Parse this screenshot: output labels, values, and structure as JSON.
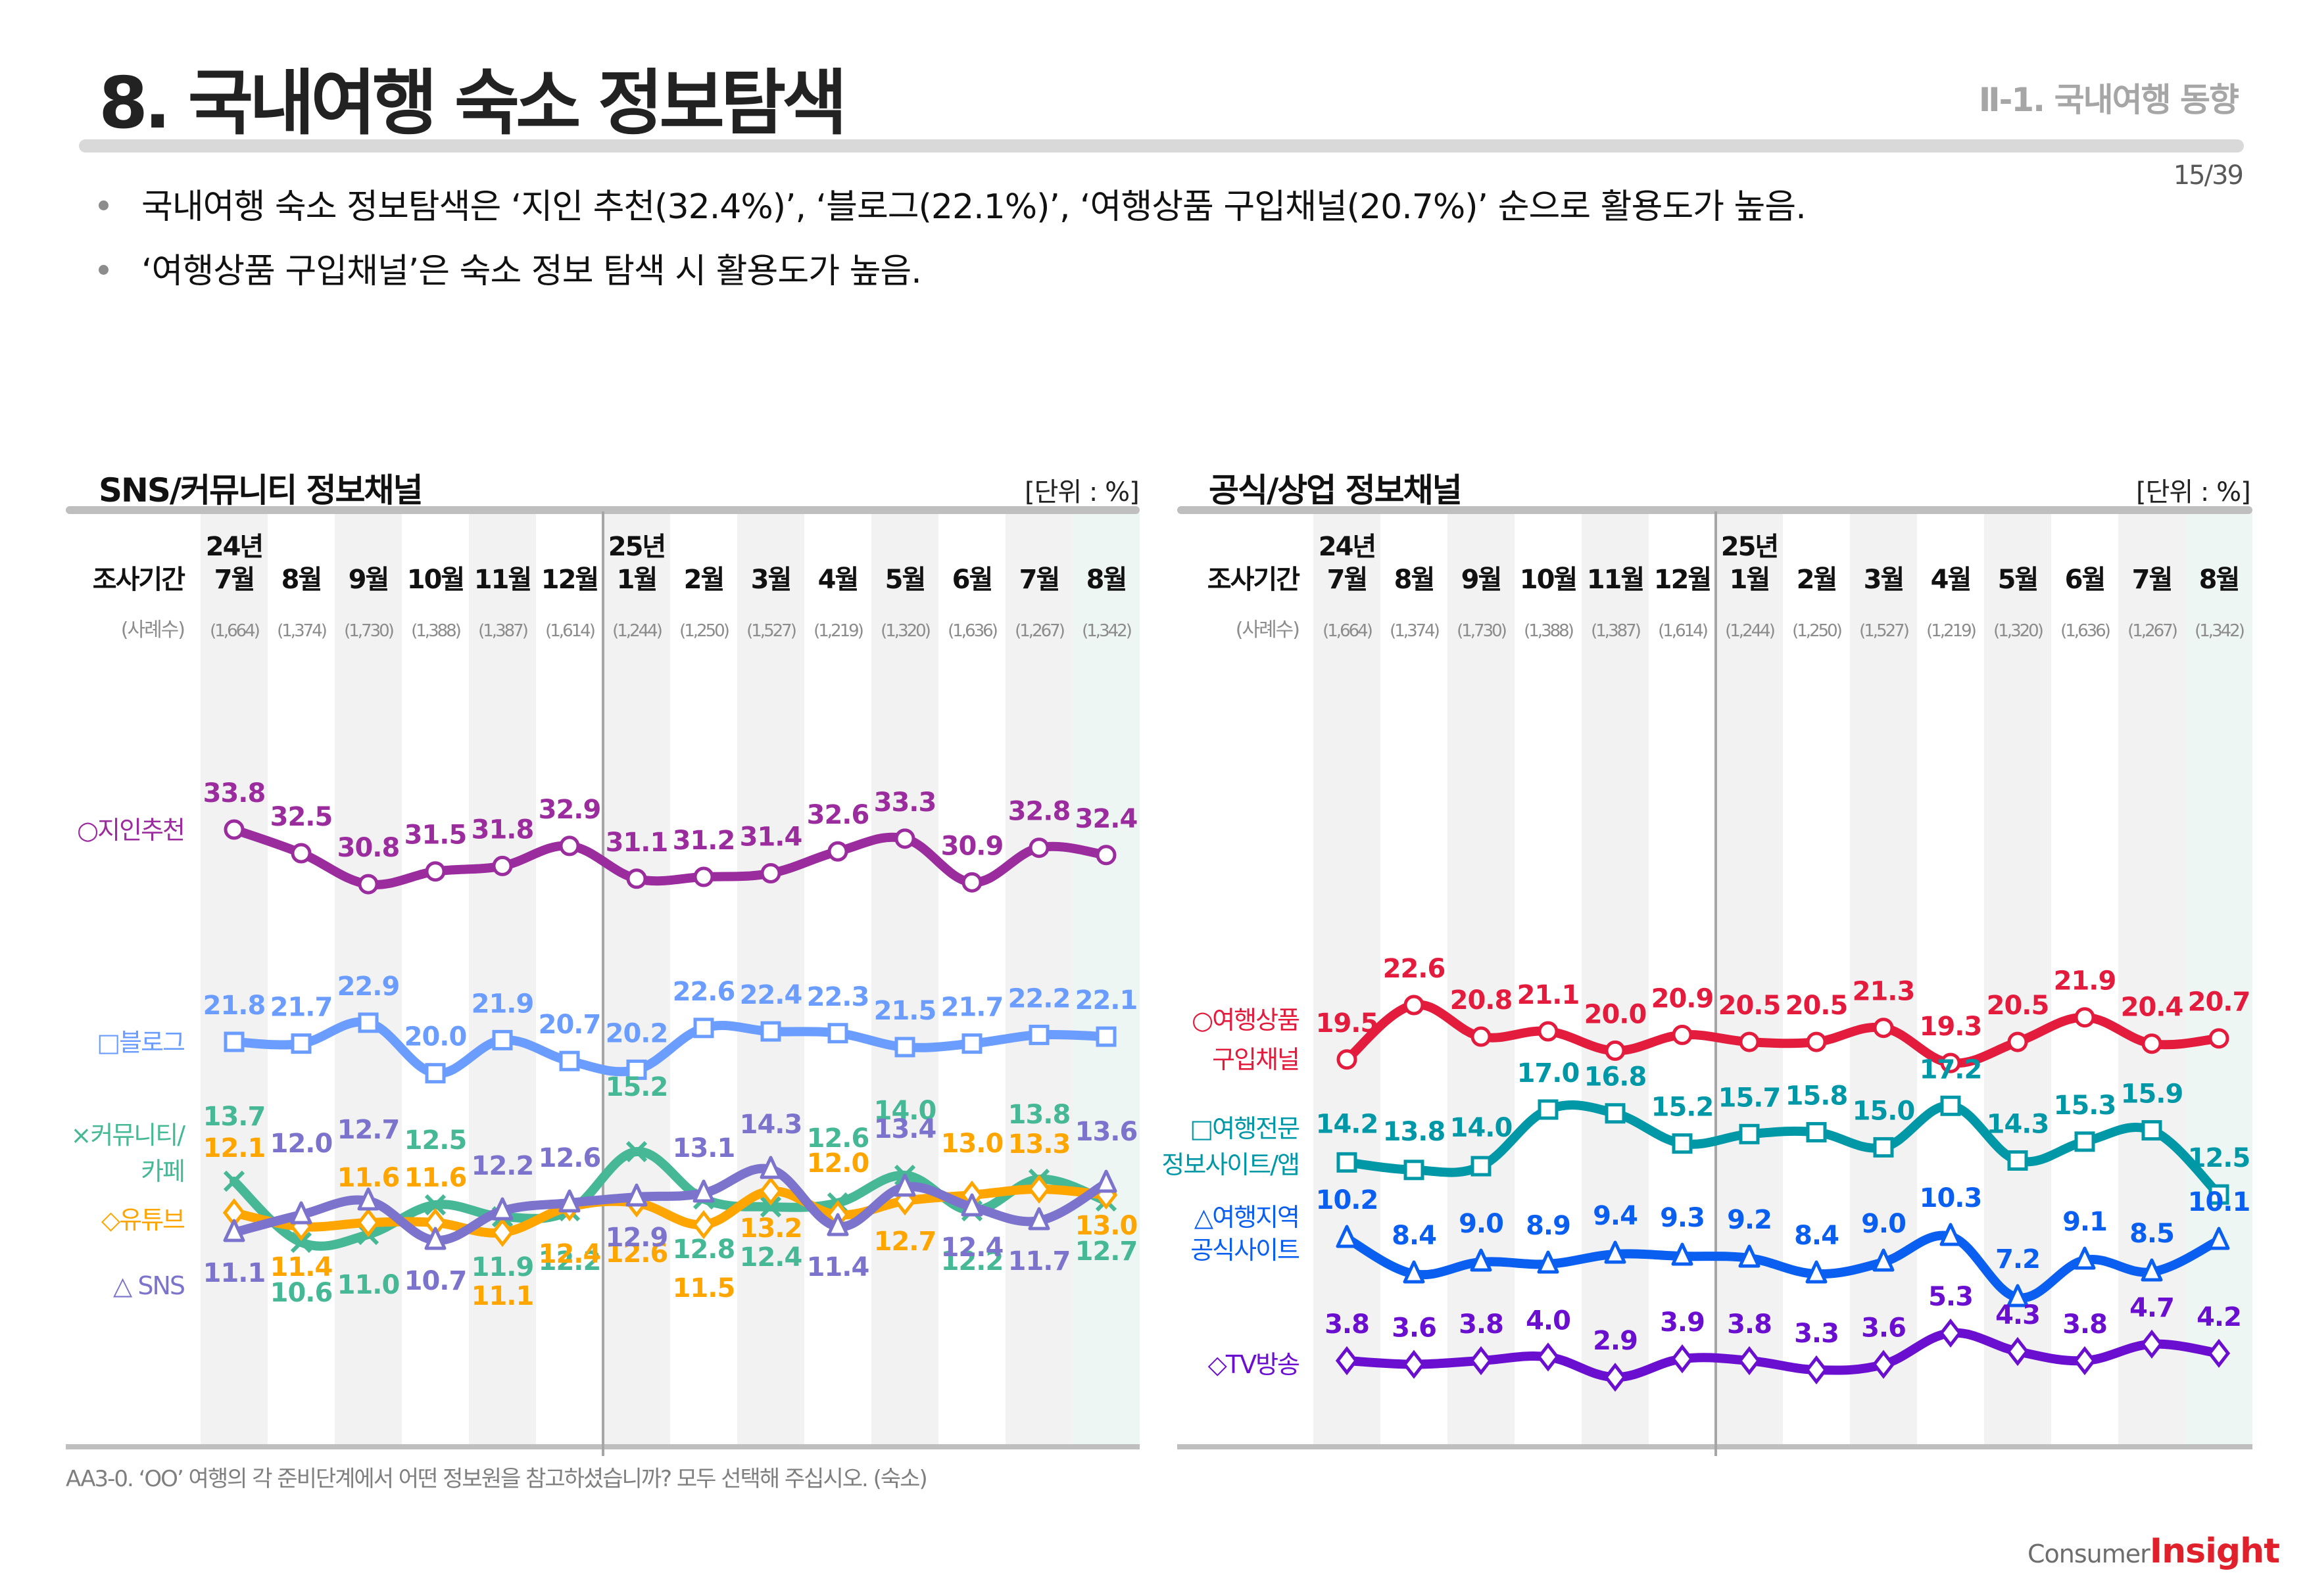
{
  "header": {
    "title": "8. 국내여행 숙소 정보탐색",
    "section": "Ⅱ-1. 국내여행 동향",
    "page": "15/39"
  },
  "bullets": [
    "국내여행 숙소 정보탐색은 ‘지인 추천(32.4%)’, ‘블로그(22.1%)’, ‘여행상품 구입채널(20.7%)’ 순으로 활용도가 높음.",
    "‘여행상품 구입채널’은 숙소 정보 탐색 시 활용도가 높음."
  ],
  "footnote": "AA3-0. ‘OO’ 여행의 각 준비단계에서 어떤 정보원을 참고하셨습니까? 모두 선택해 주십시오. (숙소)",
  "logo": {
    "part1": "Consumer",
    "part2": "Insight"
  },
  "chart_data": [
    {
      "type": "line",
      "title": "SNS/커뮤니티 정보채널",
      "unit": "[단위 : %]",
      "period_label": "조사기간",
      "sample_label": "(사례수)",
      "years": [
        {
          "label": "24년",
          "index": 0
        },
        {
          "label": "25년",
          "index": 6
        }
      ],
      "categories": [
        "7월",
        "8월",
        "9월",
        "10월",
        "11월",
        "12월",
        "1월",
        "2월",
        "3월",
        "4월",
        "5월",
        "6월",
        "7월",
        "8월"
      ],
      "sample_sizes": [
        "(1,664)",
        "(1,374)",
        "(1,730)",
        "(1,388)",
        "(1,387)",
        "(1,614)",
        "(1,244)",
        "(1,250)",
        "(1,527)",
        "(1,219)",
        "(1,320)",
        "(1,636)",
        "(1,267)",
        "(1,342)"
      ],
      "grid": "alternating column shading",
      "series": [
        {
          "name": "지인추천",
          "legend": "○지인추천",
          "marker": "circle",
          "color": "#9b2c9e",
          "values": [
            33.8,
            32.5,
            30.8,
            31.5,
            31.8,
            32.9,
            31.1,
            31.2,
            31.4,
            32.6,
            33.3,
            30.9,
            32.8,
            32.4
          ]
        },
        {
          "name": "블로그",
          "legend": "□블로그",
          "marker": "square",
          "color": "#6b9cff",
          "values": [
            21.8,
            21.7,
            22.9,
            20.0,
            21.9,
            20.7,
            20.2,
            22.6,
            22.4,
            22.3,
            21.5,
            21.7,
            22.2,
            22.1
          ]
        },
        {
          "name": "커뮤니티/카페",
          "legend": "×커뮤니티/\n카페",
          "marker": "x",
          "color": "#47b896",
          "values": [
            13.7,
            10.6,
            11.0,
            12.5,
            11.9,
            12.2,
            15.2,
            12.8,
            12.4,
            12.6,
            14.0,
            12.2,
            13.8,
            12.7
          ]
        },
        {
          "name": "유튜브",
          "legend": "◇유튜브",
          "marker": "diamond",
          "color": "#ffa500",
          "values": [
            12.1,
            11.4,
            11.6,
            11.6,
            11.1,
            12.4,
            12.6,
            11.5,
            13.2,
            12.0,
            12.7,
            13.0,
            13.3,
            13.0
          ]
        },
        {
          "name": "SNS",
          "legend": "△ SNS",
          "marker": "triangle",
          "color": "#7b73cc",
          "values": [
            11.1,
            12.0,
            12.7,
            10.7,
            12.2,
            12.6,
            12.9,
            13.1,
            14.3,
            11.4,
            13.4,
            12.4,
            11.7,
            13.6
          ]
        }
      ]
    },
    {
      "type": "line",
      "title": "공식/상업 정보채널",
      "unit": "[단위 : %]",
      "period_label": "조사기간",
      "sample_label": "(사례수)",
      "years": [
        {
          "label": "24년",
          "index": 0
        },
        {
          "label": "25년",
          "index": 6
        }
      ],
      "categories": [
        "7월",
        "8월",
        "9월",
        "10월",
        "11월",
        "12월",
        "1월",
        "2월",
        "3월",
        "4월",
        "5월",
        "6월",
        "7월",
        "8월"
      ],
      "sample_sizes": [
        "(1,664)",
        "(1,374)",
        "(1,730)",
        "(1,388)",
        "(1,387)",
        "(1,614)",
        "(1,244)",
        "(1,250)",
        "(1,527)",
        "(1,219)",
        "(1,320)",
        "(1,636)",
        "(1,267)",
        "(1,342)"
      ],
      "grid": "alternating column shading",
      "series": [
        {
          "name": "여행상품 구입채널",
          "legend": "○여행상품\n구입채널",
          "marker": "circle",
          "color": "#e31b3c",
          "values": [
            19.5,
            22.6,
            20.8,
            21.1,
            20.0,
            20.9,
            20.5,
            20.5,
            21.3,
            19.3,
            20.5,
            21.9,
            20.4,
            20.7
          ]
        },
        {
          "name": "여행전문 정보사이트/앱",
          "legend": "□여행전문\n정보사이트/앱",
          "marker": "square",
          "color": "#0098a6",
          "values": [
            14.2,
            13.8,
            14.0,
            17.0,
            16.8,
            15.2,
            15.7,
            15.8,
            15.0,
            17.2,
            14.3,
            15.3,
            15.9,
            12.5
          ]
        },
        {
          "name": "여행지역 공식사이트",
          "legend": "△여행지역\n공식사이트",
          "marker": "triangle",
          "color": "#0a5ff0",
          "values": [
            10.2,
            8.4,
            9.0,
            8.9,
            9.4,
            9.3,
            9.2,
            8.4,
            9.0,
            10.3,
            7.2,
            9.1,
            8.5,
            10.1
          ]
        },
        {
          "name": "TV방송",
          "legend": "◇TV방송",
          "marker": "diamond",
          "color": "#6a0fcf",
          "values": [
            3.8,
            3.6,
            3.8,
            4.0,
            2.9,
            3.9,
            3.8,
            3.3,
            3.6,
            5.3,
            4.3,
            3.8,
            4.7,
            4.2
          ]
        }
      ]
    }
  ]
}
